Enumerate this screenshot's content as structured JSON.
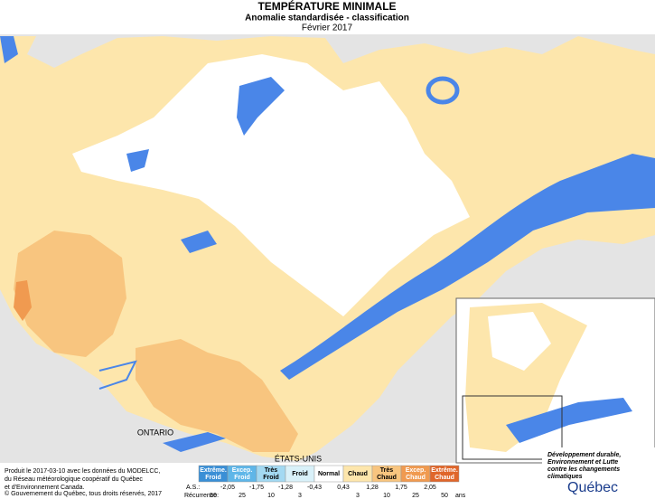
{
  "header": {
    "title": "TEMPÉRATURE MINIMALE",
    "subtitle": "Anomalie standardisée - classification",
    "date": "Février 2017"
  },
  "map_labels": [
    "ONTARIO",
    "ÉTATS-UNIS"
  ],
  "legend": {
    "classes": [
      {
        "lines": [
          "Extrême.",
          "Froid"
        ],
        "color": "#3a8fd6"
      },
      {
        "lines": [
          "Excep.",
          "Froid"
        ],
        "color": "#5fb6e8"
      },
      {
        "lines": [
          "Très",
          "Froid"
        ],
        "color": "#a3d9f2"
      },
      {
        "lines": [
          "Froid"
        ],
        "color": "#d9f1f9"
      },
      {
        "lines": [
          "Normal"
        ],
        "color": "#ffffff"
      },
      {
        "lines": [
          "Chaud"
        ],
        "color": "#fde6ac"
      },
      {
        "lines": [
          "Très",
          "Chaud"
        ],
        "color": "#f8c57f"
      },
      {
        "lines": [
          "Excep.",
          "Chaud"
        ],
        "color": "#f09a50"
      },
      {
        "lines": [
          "Extrême.",
          "Chaud"
        ],
        "color": "#e0662a"
      }
    ],
    "as_label": "A.S.:",
    "thresholds": [
      "-2,05",
      "-1,75",
      "-1,28",
      "-0,43",
      "0,43",
      "1,28",
      "1,75",
      "2,05"
    ],
    "recurrence_label": "Récurrence:",
    "recurrence": [
      50,
      25,
      10,
      3,
      3,
      10,
      25,
      50
    ],
    "recurrence_unit": "ans"
  },
  "credits": [
    "Produit le 2017-03-10 avec les données du MODELCC,",
    "du Réseau météorologique coopératif du Québec",
    "et d'Environnement Canada.",
    "© Gouvernement du Québec, tous droits réservés, 2017"
  ],
  "logo": {
    "lines": [
      "Développement durable,",
      "Environnement et Lutte",
      "contre les changements",
      "climatiques"
    ],
    "name": "Québec"
  }
}
